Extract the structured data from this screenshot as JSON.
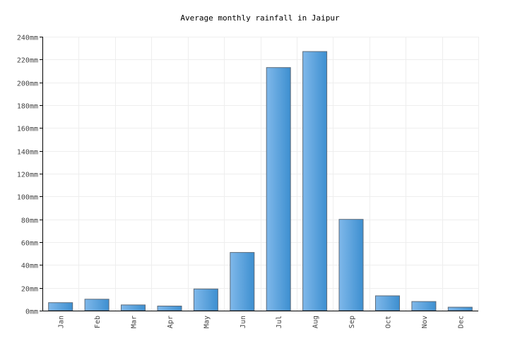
{
  "chart_data": {
    "type": "bar",
    "title": "Average monthly rainfall in Jaipur",
    "categories": [
      "Jan",
      "Feb",
      "Mar",
      "Apr",
      "May",
      "Jun",
      "Jul",
      "Aug",
      "Sep",
      "Oct",
      "Nov",
      "Dec"
    ],
    "values": [
      7,
      10,
      5,
      4,
      19,
      51,
      213,
      227,
      80,
      13,
      8,
      3
    ],
    "unit": "mm",
    "ylim": [
      0,
      240
    ],
    "ytick_step": 20,
    "xlabel": "",
    "ylabel": "",
    "grid": true,
    "colors": {
      "bar_light": "#7fb8ea",
      "bar_dark": "#3d8fd0",
      "bar_border": "#5d6b7a",
      "grid": "#eeeeee"
    }
  }
}
